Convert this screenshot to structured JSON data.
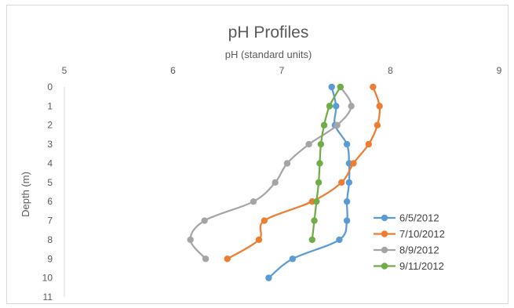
{
  "chart_data": {
    "type": "line",
    "title": "pH Profiles",
    "xlabel": "pH (standard units)",
    "ylabel": "Depth (m)",
    "xlim": [
      5,
      9
    ],
    "ylim": [
      0,
      11
    ],
    "x_axis_position": "top",
    "y_axis_inverted": true,
    "x_ticks": [
      "5",
      "6",
      "7",
      "8",
      "9"
    ],
    "y_ticks": [
      "0",
      "1",
      "2",
      "3",
      "4",
      "5",
      "6",
      "7",
      "8",
      "9",
      "10",
      "11"
    ],
    "grid": false,
    "legend_position": "bottom-right",
    "series": [
      {
        "name": "6/5/2012",
        "color": "#5b9bd5",
        "points": [
          [
            7.46,
            0
          ],
          [
            7.5,
            1
          ],
          [
            7.49,
            2
          ],
          [
            7.6,
            3
          ],
          [
            7.62,
            4
          ],
          [
            7.62,
            5
          ],
          [
            7.6,
            6
          ],
          [
            7.6,
            7
          ],
          [
            7.53,
            8
          ],
          [
            7.1,
            9
          ],
          [
            6.88,
            10
          ]
        ]
      },
      {
        "name": "7/10/2012",
        "color": "#ed7d31",
        "points": [
          [
            7.84,
            0
          ],
          [
            7.9,
            1
          ],
          [
            7.88,
            2
          ],
          [
            7.8,
            3
          ],
          [
            7.66,
            4
          ],
          [
            7.55,
            5
          ],
          [
            7.28,
            6
          ],
          [
            6.84,
            7
          ],
          [
            6.79,
            8
          ],
          [
            6.5,
            9
          ]
        ]
      },
      {
        "name": "8/9/2012",
        "color": "#a5a5a5",
        "points": [
          [
            7.54,
            0
          ],
          [
            7.64,
            1
          ],
          [
            7.51,
            2
          ],
          [
            7.25,
            3
          ],
          [
            7.05,
            4
          ],
          [
            6.94,
            5
          ],
          [
            6.74,
            6
          ],
          [
            6.29,
            7
          ],
          [
            6.16,
            8
          ],
          [
            6.3,
            9
          ]
        ]
      },
      {
        "name": "9/11/2012",
        "color": "#70ad47",
        "points": [
          [
            7.54,
            0
          ],
          [
            7.44,
            1
          ],
          [
            7.39,
            2
          ],
          [
            7.36,
            3
          ],
          [
            7.35,
            4
          ],
          [
            7.34,
            5
          ],
          [
            7.32,
            6
          ],
          [
            7.3,
            7
          ],
          [
            7.28,
            8
          ]
        ]
      }
    ]
  }
}
